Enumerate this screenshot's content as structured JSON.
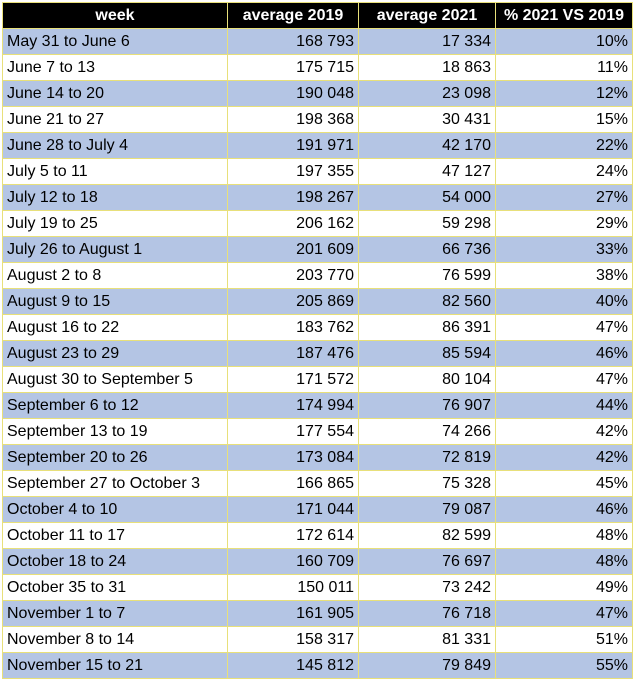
{
  "table": {
    "headers": [
      "week",
      "average 2019",
      "average 2021",
      "% 2021 VS 2019"
    ],
    "rows": [
      [
        "May 31 to June 6",
        "168 793",
        "17 334",
        "10%"
      ],
      [
        "June 7 to 13",
        "175 715",
        "18 863",
        "11%"
      ],
      [
        "June 14 to 20",
        "190 048",
        "23 098",
        "12%"
      ],
      [
        "June 21 to 27",
        "198 368",
        "30 431",
        "15%"
      ],
      [
        "June 28 to July 4",
        "191 971",
        "42 170",
        "22%"
      ],
      [
        "July 5 to 11",
        "197 355",
        "47 127",
        "24%"
      ],
      [
        "July 12 to 18",
        "198 267",
        "54 000",
        "27%"
      ],
      [
        "July 19 to 25",
        "206 162",
        "59 298",
        "29%"
      ],
      [
        "July 26 to August 1",
        "201 609",
        "66 736",
        "33%"
      ],
      [
        "August 2 to 8",
        "203 770",
        "76 599",
        "38%"
      ],
      [
        "August 9 to 15",
        "205 869",
        "82 560",
        "40%"
      ],
      [
        "August 16 to 22",
        "183 762",
        "86 391",
        "47%"
      ],
      [
        "August 23 to 29",
        "187 476",
        "85 594",
        "46%"
      ],
      [
        "August 30 to September 5",
        "171 572",
        "80 104",
        "47%"
      ],
      [
        "September 6 to 12",
        "174 994",
        "76 907",
        "44%"
      ],
      [
        "September 13 to 19",
        "177 554",
        "74 266",
        "42%"
      ],
      [
        "September 20 to 26",
        "173 084",
        "72 819",
        "42%"
      ],
      [
        "September 27 to October 3",
        "166 865",
        "75 328",
        "45%"
      ],
      [
        "October 4 to 10",
        "171 044",
        "79 087",
        "46%"
      ],
      [
        "October 11 to 17",
        "172 614",
        "82 599",
        "48%"
      ],
      [
        "October 18 to 24",
        "160 709",
        "76 697",
        "48%"
      ],
      [
        "October 35 to 31",
        "150 011",
        "73 242",
        "49%"
      ],
      [
        "November 1 to 7",
        "161 905",
        "76 718",
        "47%"
      ],
      [
        "November 8 to 14",
        "158 317",
        "81 331",
        "51%"
      ],
      [
        "November 15 to 21",
        "145 812",
        "79 849",
        "55%"
      ]
    ]
  },
  "colors": {
    "header_background": "#000000",
    "header_text": "#ffffff",
    "band_row": "#b4c5e4",
    "plain_row": "#ffffff",
    "grid_lines": "#e8e07a"
  }
}
